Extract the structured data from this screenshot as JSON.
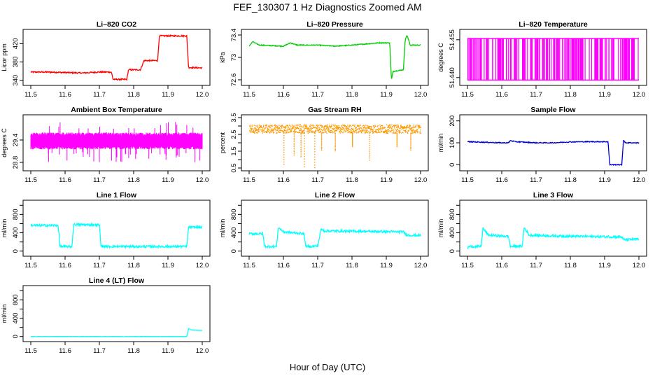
{
  "figure": {
    "title": "FEF_130307  1 Hz Diagnostics Zoomed AM",
    "xlabel": "Hour of Day (UTC)"
  },
  "chart_data": [
    {
      "type": "line",
      "title": "Li–820 CO2",
      "ylabel": "Licor ppm",
      "color": "#ff0000",
      "xlim": [
        11.5,
        12.0
      ],
      "ylim": [
        335,
        445
      ],
      "yticks": [
        340,
        380,
        420
      ],
      "xticks": [
        11.5,
        11.6,
        11.7,
        11.8,
        11.9,
        12.0
      ],
      "points": [
        [
          11.5,
          358
        ],
        [
          11.55,
          358
        ],
        [
          11.6,
          357
        ],
        [
          11.65,
          356
        ],
        [
          11.7,
          358
        ],
        [
          11.735,
          358
        ],
        [
          11.74,
          342
        ],
        [
          11.78,
          342
        ],
        [
          11.785,
          363
        ],
        [
          11.82,
          363
        ],
        [
          11.83,
          383
        ],
        [
          11.87,
          383
        ],
        [
          11.875,
          437
        ],
        [
          11.955,
          437
        ],
        [
          11.96,
          368
        ],
        [
          12.0,
          367
        ]
      ],
      "noise": 1.5
    },
    {
      "type": "line",
      "title": "Li–820 Pressure",
      "ylabel": "kPa",
      "color": "#00cc00",
      "xlim": [
        11.5,
        12.0
      ],
      "ylim": [
        72.55,
        73.45
      ],
      "yticks": [
        72.6,
        73.0,
        73.4
      ],
      "xticks": [
        11.5,
        11.6,
        11.7,
        11.8,
        11.9,
        12.0
      ],
      "points": [
        [
          11.5,
          73.2
        ],
        [
          11.51,
          73.28
        ],
        [
          11.53,
          73.22
        ],
        [
          11.6,
          73.2
        ],
        [
          11.62,
          73.26
        ],
        [
          11.64,
          73.22
        ],
        [
          11.7,
          73.22
        ],
        [
          11.75,
          73.2
        ],
        [
          11.8,
          73.22
        ],
        [
          11.84,
          73.24
        ],
        [
          11.88,
          73.26
        ],
        [
          11.91,
          73.26
        ],
        [
          11.915,
          72.6
        ],
        [
          11.92,
          72.75
        ],
        [
          11.95,
          72.78
        ],
        [
          11.955,
          73.3
        ],
        [
          11.96,
          73.4
        ],
        [
          11.97,
          73.22
        ],
        [
          12.0,
          73.22
        ]
      ],
      "noise": 0.008
    },
    {
      "type": "line",
      "title": "Li–820 Temperature",
      "ylabel": "degrees C",
      "color": "#ff00ff",
      "xlim": [
        11.5,
        12.0
      ],
      "ylim": [
        51.438,
        51.458
      ],
      "yticks": [
        51.44,
        51.455
      ],
      "ytickLabels": [
        "51.440",
        "51.455"
      ],
      "xticks": [
        11.5,
        11.6,
        11.7,
        11.8,
        11.9,
        12.0
      ],
      "toggle": {
        "low": 51.439,
        "high": 51.4555
      }
    },
    {
      "type": "line",
      "title": "Ambient Box Temperature",
      "ylabel": "degrees C",
      "color": "#ff00ff",
      "xlim": [
        11.5,
        12.0
      ],
      "ylim": [
        28.65,
        30.0
      ],
      "yticks": [
        28.8,
        29.4
      ],
      "xticks": [
        11.5,
        11.6,
        11.7,
        11.8,
        11.9,
        12.0
      ],
      "band": {
        "low": 29.15,
        "high": 29.6,
        "spikeLow": 28.8,
        "spikeHigh": 29.9
      }
    },
    {
      "type": "scatter",
      "title": "Gas Stream RH",
      "ylabel": "percent",
      "color": "#ff9900",
      "xlim": [
        11.5,
        12.0
      ],
      "ylim": [
        0.5,
        3.5
      ],
      "yticks": [
        0.5,
        1.5,
        2.5,
        3.5
      ],
      "ytickLabels": [
        "0.5",
        "1.5",
        "2.5",
        "3.5"
      ],
      "yticks2": [
        1.0,
        2.0,
        3.0
      ],
      "ytickLabels2": [
        "1.0",
        "2.0",
        "3.0"
      ],
      "xticks": [
        11.5,
        11.6,
        11.7,
        11.8,
        11.9,
        12.0
      ],
      "band": {
        "low": 2.6,
        "high": 3.1
      },
      "dips": [
        [
          11.6,
          0.75
        ],
        [
          11.63,
          1.3
        ],
        [
          11.65,
          1.2
        ],
        [
          11.66,
          0.6
        ],
        [
          11.69,
          0.55
        ],
        [
          11.71,
          1.6
        ],
        [
          11.75,
          1.55
        ],
        [
          11.8,
          1.8
        ],
        [
          11.85,
          1.0
        ],
        [
          11.93,
          1.8
        ],
        [
          11.97,
          1.6
        ]
      ]
    },
    {
      "type": "line",
      "title": "Sample Flow",
      "ylabel": "ml/min",
      "color": "#0000cc",
      "xlim": [
        11.5,
        12.0
      ],
      "ylim": [
        -15,
        215
      ],
      "yticks": [
        0,
        100,
        200
      ],
      "xticks": [
        11.5,
        11.6,
        11.7,
        11.8,
        11.9,
        12.0
      ],
      "points": [
        [
          11.5,
          105
        ],
        [
          11.6,
          100
        ],
        [
          11.62,
          100
        ],
        [
          11.625,
          110
        ],
        [
          11.64,
          105
        ],
        [
          11.7,
          100
        ],
        [
          11.75,
          100
        ],
        [
          11.8,
          104
        ],
        [
          11.85,
          105
        ],
        [
          11.91,
          105
        ],
        [
          11.915,
          0
        ],
        [
          11.95,
          0
        ],
        [
          11.955,
          115
        ],
        [
          11.96,
          100
        ],
        [
          12.0,
          100
        ]
      ],
      "noise": 2
    },
    {
      "type": "line",
      "title": "Line 1 Flow",
      "ylabel": "ml/min",
      "color": "#00ffff",
      "xlim": [
        11.5,
        12.0
      ],
      "ylim": [
        -50,
        1050
      ],
      "yticks": [
        0,
        400,
        800
      ],
      "yticks2": [
        200,
        600,
        1000
      ],
      "xticks": [
        11.5,
        11.6,
        11.7,
        11.8,
        11.9,
        12.0
      ],
      "points": [
        [
          11.5,
          560
        ],
        [
          11.58,
          560
        ],
        [
          11.585,
          100
        ],
        [
          11.62,
          100
        ],
        [
          11.625,
          580
        ],
        [
          11.7,
          570
        ],
        [
          11.705,
          100
        ],
        [
          11.72,
          100
        ],
        [
          11.955,
          100
        ],
        [
          11.96,
          520
        ],
        [
          12.0,
          520
        ]
      ],
      "noise": 25
    },
    {
      "type": "line",
      "title": "Line 2 Flow",
      "ylabel": "ml/min",
      "color": "#00ffff",
      "xlim": [
        11.5,
        12.0
      ],
      "ylim": [
        -50,
        1050
      ],
      "yticks": [
        0,
        400,
        800
      ],
      "yticks2": [
        200,
        600,
        1000
      ],
      "xticks": [
        11.5,
        11.6,
        11.7,
        11.8,
        11.9,
        12.0
      ],
      "points": [
        [
          11.5,
          380
        ],
        [
          11.54,
          380
        ],
        [
          11.545,
          100
        ],
        [
          11.58,
          100
        ],
        [
          11.585,
          520
        ],
        [
          11.6,
          420
        ],
        [
          11.66,
          380
        ],
        [
          11.665,
          100
        ],
        [
          11.7,
          110
        ],
        [
          11.71,
          480
        ],
        [
          11.72,
          440
        ],
        [
          11.85,
          430
        ],
        [
          11.95,
          420
        ],
        [
          11.96,
          350
        ],
        [
          12.0,
          340
        ]
      ],
      "noise": 25
    },
    {
      "type": "line",
      "title": "Line 3 Flow",
      "ylabel": "ml/min",
      "color": "#00ffff",
      "xlim": [
        11.5,
        12.0
      ],
      "ylim": [
        -50,
        1050
      ],
      "yticks": [
        0,
        400,
        800
      ],
      "yticks2": [
        200,
        600,
        1000
      ],
      "xticks": [
        11.5,
        11.6,
        11.7,
        11.8,
        11.9,
        12.0
      ],
      "points": [
        [
          11.5,
          60
        ],
        [
          11.505,
          100
        ],
        [
          11.54,
          100
        ],
        [
          11.545,
          500
        ],
        [
          11.56,
          350
        ],
        [
          11.62,
          320
        ],
        [
          11.625,
          100
        ],
        [
          11.66,
          110
        ],
        [
          11.665,
          520
        ],
        [
          11.68,
          350
        ],
        [
          11.75,
          330
        ],
        [
          11.85,
          320
        ],
        [
          11.95,
          310
        ],
        [
          11.955,
          250
        ],
        [
          12.0,
          260
        ]
      ],
      "noise": 25
    },
    {
      "type": "line",
      "title": "Line 4 (LT) Flow",
      "ylabel": "ml/min",
      "color": "#00ffff",
      "xlim": [
        11.5,
        12.0
      ],
      "ylim": [
        -50,
        1050
      ],
      "yticks": [
        0,
        400,
        800
      ],
      "yticks2": [
        200,
        600,
        1000
      ],
      "xticks": [
        11.5,
        11.6,
        11.7,
        11.8,
        11.9,
        12.0
      ],
      "points": [
        [
          11.5,
          0
        ],
        [
          11.955,
          0
        ],
        [
          11.96,
          170
        ],
        [
          11.97,
          140
        ],
        [
          12.0,
          130
        ]
      ],
      "noise": 4
    }
  ]
}
